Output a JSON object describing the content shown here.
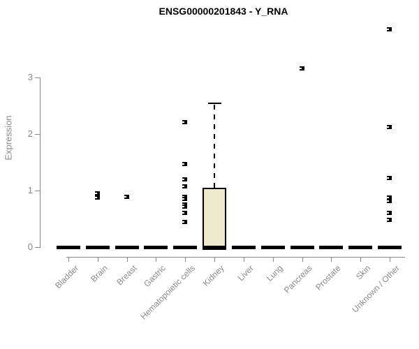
{
  "chart_data": {
    "type": "boxplot",
    "title": "ENSG00000201843 - Y_RNA",
    "ylabel": "Expression",
    "xlabel": "",
    "ylim": [
      0,
      3.9
    ],
    "yticks": [
      0,
      1,
      2,
      3
    ],
    "ytick_labels": [
      "0",
      "1",
      "2",
      "3"
    ],
    "grid": false,
    "legend": false,
    "categories": [
      "Bladder",
      "Brain",
      "Breast",
      "Gastric",
      "Hematopoietic cells",
      "Kidney",
      "Liver",
      "Lung",
      "Pancreas",
      "Prostate",
      "Skin",
      "Unknown / Other"
    ],
    "boxes": [
      {
        "category": "Bladder",
        "q1": 0,
        "median": 0,
        "q3": 0,
        "whisker_low": 0,
        "whisker_high": 0,
        "outliers": []
      },
      {
        "category": "Brain",
        "q1": 0,
        "median": 0,
        "q3": 0,
        "whisker_low": 0,
        "whisker_high": 0,
        "outliers": [
          0.95,
          0.88
        ]
      },
      {
        "category": "Breast",
        "q1": 0,
        "median": 0,
        "q3": 0,
        "whisker_low": 0,
        "whisker_high": 0,
        "outliers": [
          0.89
        ]
      },
      {
        "category": "Gastric",
        "q1": 0,
        "median": 0,
        "q3": 0,
        "whisker_low": 0,
        "whisker_high": 0,
        "outliers": []
      },
      {
        "category": "Hematopoietic cells",
        "q1": 0,
        "median": 0,
        "q3": 0,
        "whisker_low": 0,
        "whisker_high": 0,
        "outliers": [
          2.21,
          1.47,
          1.2,
          1.07,
          0.89,
          0.85,
          0.75,
          0.71,
          0.6,
          0.44
        ]
      },
      {
        "category": "Kidney",
        "q1": 0,
        "median": 0,
        "q3": 1.05,
        "whisker_low": 0,
        "whisker_high": 2.56,
        "outliers": []
      },
      {
        "category": "Liver",
        "q1": 0,
        "median": 0,
        "q3": 0,
        "whisker_low": 0,
        "whisker_high": 0,
        "outliers": []
      },
      {
        "category": "Lung",
        "q1": 0,
        "median": 0,
        "q3": 0,
        "whisker_low": 0,
        "whisker_high": 0,
        "outliers": []
      },
      {
        "category": "Pancreas",
        "q1": 0,
        "median": 0,
        "q3": 0,
        "whisker_low": 0,
        "whisker_high": 0,
        "outliers": [
          3.16
        ]
      },
      {
        "category": "Prostate",
        "q1": 0,
        "median": 0,
        "q3": 0,
        "whisker_low": 0,
        "whisker_high": 0,
        "outliers": []
      },
      {
        "category": "Skin",
        "q1": 0,
        "median": 0,
        "q3": 0,
        "whisker_low": 0,
        "whisker_high": 0,
        "outliers": []
      },
      {
        "category": "Unknown / Other",
        "q1": 0,
        "median": 0,
        "q3": 0,
        "whisker_low": 0,
        "whisker_high": 0,
        "outliers": [
          3.85,
          2.12,
          1.22,
          0.88,
          0.82,
          0.6,
          0.48
        ]
      }
    ],
    "colors": {
      "box_fill": "#EEE8CD",
      "box_border": "#000000",
      "axis": "#888888",
      "tick_text": "#8a8a8a",
      "title_text": "#000000",
      "outlier": "#000000"
    }
  }
}
